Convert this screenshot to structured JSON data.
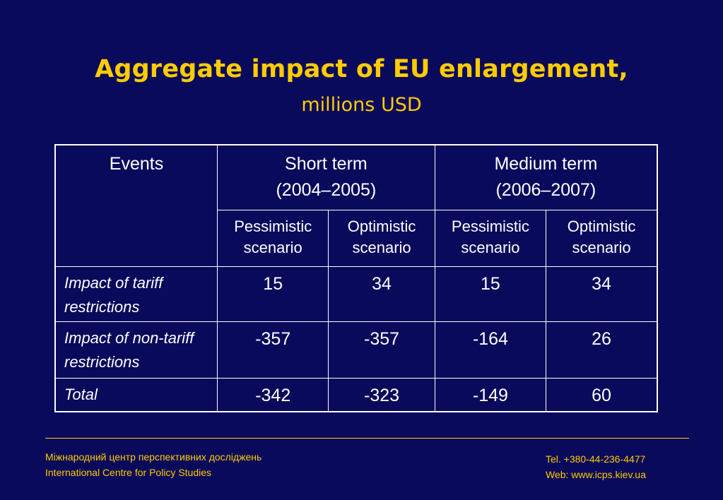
{
  "slide": {
    "title": "Aggregate impact of EU enlargement,",
    "subtitle": "millions USD"
  },
  "table": {
    "header": {
      "events": "Events",
      "short_term": "Short term",
      "short_term_years": "(2004–2005)",
      "medium_term": "Medium term",
      "medium_term_years": "(2006–2007)",
      "scenarios": [
        "Pessimistic scenario",
        "Optimistic scenario",
        "Pessimistic scenario",
        "Optimistic scenario"
      ]
    },
    "rows": [
      {
        "label": "Impact of tariff restrictions",
        "values": [
          "15",
          "34",
          "15",
          "34"
        ]
      },
      {
        "label": "Impact of non-tariff restrictions",
        "values": [
          "-357",
          "-357",
          "-164",
          "26"
        ]
      },
      {
        "label": "Total",
        "values": [
          "-342",
          "-323",
          "-149",
          "60"
        ]
      }
    ]
  },
  "footer": {
    "org_ua": "Міжнародний центр перспективних досліджень",
    "org_en": "International Centre for Policy Studies",
    "tel": "Tel. +380-44-236-4477",
    "web": "Web: www.icps.kiev.ua"
  },
  "colors": {
    "background": "#0a0a5c",
    "accent": "#ffcc00",
    "text": "#ffffff"
  }
}
